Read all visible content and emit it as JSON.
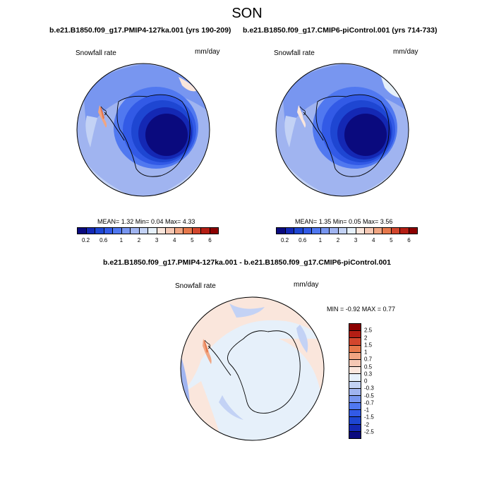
{
  "title": "SON",
  "panels": [
    {
      "run": "b.e21.B1850.f09_g17.PMIP4-127ka.001 (yrs 190-209)",
      "variable": "Snowfall rate",
      "units": "mm/day",
      "stats": "MEAN=  1.32  Min=  0.04  Max=  4.33"
    },
    {
      "run": "b.e21.B1850.f09_g17.CMIP6-piControl.001 (yrs 714-733)",
      "variable": "Snowfall rate",
      "units": "mm/day",
      "stats": "MEAN=  1.35  Min=  0.05  Max=  3.56"
    }
  ],
  "diff_panel": {
    "title": "b.e21.B1850.f09_g17.PMIP4-127ka.001 - b.e21.B1850.f09_g17.CMIP6-piControl.001",
    "variable": "Snowfall rate",
    "units": "mm/day",
    "stats": "MIN =  -0.92 MAX =   0.77"
  },
  "colorbar_abs": {
    "colors": [
      "#0a0a7e",
      "#1428b4",
      "#1e46d2",
      "#325ae6",
      "#5078f0",
      "#7896f0",
      "#a0b4f0",
      "#c3d2f5",
      "#e6f0fa",
      "#fae6dc",
      "#f5c8b4",
      "#f0a582",
      "#e6784b",
      "#d2462d",
      "#b41e14",
      "#8c0000"
    ],
    "tick_labels": [
      "0.2",
      "0.6",
      "1",
      "2",
      "3",
      "4",
      "5",
      "6"
    ]
  },
  "colorbar_diff": {
    "colors": [
      "#8c0000",
      "#b41e14",
      "#d2462d",
      "#e6784b",
      "#f0a582",
      "#f5c8b4",
      "#fae6dc",
      "#e6f0fa",
      "#c3d2f5",
      "#a0b4f0",
      "#7896f0",
      "#5078f0",
      "#325ae6",
      "#1e46d2",
      "#1428b4",
      "#0a0a7e"
    ],
    "tick_labels": [
      "2.5",
      "2",
      "1.5",
      "1",
      "0.7",
      "0.5",
      "0.3",
      "0",
      "-0.3",
      "-0.5",
      "-0.7",
      "-1",
      "-1.5",
      "-2",
      "-2.5"
    ]
  }
}
